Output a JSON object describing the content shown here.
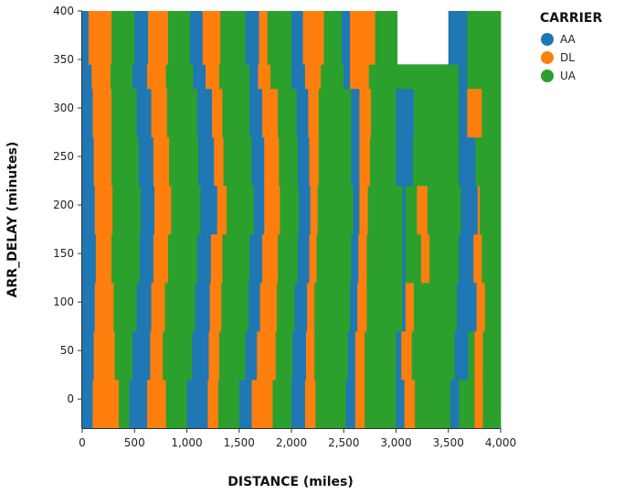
{
  "chart_data": {
    "type": "area",
    "stack": "normalize-like (streamgraph-style stacked area with vertical orientation)",
    "title": "",
    "xlabel": "DISTANCE (miles)",
    "ylabel": "ARR_DELAY (minutes)",
    "xlim": [
      0,
      4000
    ],
    "ylim": [
      -30,
      400
    ],
    "x_ticks": [
      0,
      500,
      1000,
      1500,
      2000,
      2500,
      3000,
      3500,
      4000
    ],
    "x_tick_labels": [
      "0",
      "500",
      "1,000",
      "1,500",
      "2,000",
      "2,500",
      "3,000",
      "3,500",
      "4,000"
    ],
    "y_ticks": [
      0,
      50,
      100,
      150,
      200,
      250,
      300,
      350,
      400
    ],
    "y_tick_labels": [
      "0",
      "50",
      "100",
      "150",
      "200",
      "250",
      "300",
      "350",
      "400"
    ],
    "grid": false,
    "legend": {
      "title": "CARRIER",
      "position": "top-right",
      "entries": [
        {
          "name": "AA",
          "color": "#1f77b4"
        },
        {
          "name": "DL",
          "color": "#ff7f0e"
        },
        {
          "name": "UA",
          "color": "#2ca02c"
        }
      ]
    },
    "y_bins": [
      -30,
      20,
      70,
      120,
      170,
      220,
      270,
      320,
      345,
      400
    ],
    "bands": [
      [
        [
          0,
          100,
          "AA"
        ],
        [
          100,
          350,
          "DL"
        ],
        [
          350,
          450,
          "UA"
        ],
        [
          450,
          620,
          "AA"
        ],
        [
          620,
          800,
          "DL"
        ],
        [
          800,
          1000,
          "UA"
        ],
        [
          1000,
          1200,
          "AA"
        ],
        [
          1200,
          1300,
          "DL"
        ],
        [
          1300,
          1500,
          "UA"
        ],
        [
          1500,
          1620,
          "AA"
        ],
        [
          1620,
          1820,
          "DL"
        ],
        [
          1820,
          2000,
          "UA"
        ],
        [
          2000,
          2130,
          "AA"
        ],
        [
          2130,
          2230,
          "DL"
        ],
        [
          2230,
          2520,
          "UA"
        ],
        [
          2520,
          2610,
          "AA"
        ],
        [
          2610,
          2700,
          "DL"
        ],
        [
          2700,
          3000,
          "UA"
        ],
        [
          3000,
          3080,
          "AA"
        ],
        [
          3080,
          3180,
          "DL"
        ],
        [
          3180,
          3520,
          "UA"
        ],
        [
          3520,
          3600,
          "AA"
        ],
        [
          3600,
          3750,
          "UA"
        ],
        [
          3750,
          3830,
          "DL"
        ],
        [
          3830,
          4000,
          "UA"
        ]
      ],
      [
        [
          0,
          110,
          "AA"
        ],
        [
          110,
          310,
          "DL"
        ],
        [
          310,
          480,
          "UA"
        ],
        [
          480,
          650,
          "AA"
        ],
        [
          650,
          770,
          "DL"
        ],
        [
          770,
          1050,
          "UA"
        ],
        [
          1050,
          1210,
          "AA"
        ],
        [
          1210,
          1310,
          "DL"
        ],
        [
          1310,
          1560,
          "UA"
        ],
        [
          1560,
          1670,
          "AA"
        ],
        [
          1670,
          1850,
          "DL"
        ],
        [
          1850,
          2010,
          "UA"
        ],
        [
          2010,
          2140,
          "AA"
        ],
        [
          2140,
          2220,
          "DL"
        ],
        [
          2220,
          2540,
          "UA"
        ],
        [
          2540,
          2610,
          "AA"
        ],
        [
          2610,
          2700,
          "DL"
        ],
        [
          2700,
          3000,
          "UA"
        ],
        [
          3000,
          3050,
          "AA"
        ],
        [
          3050,
          3150,
          "DL"
        ],
        [
          3150,
          3560,
          "UA"
        ],
        [
          3560,
          3690,
          "AA"
        ],
        [
          3690,
          3750,
          "UA"
        ],
        [
          3750,
          3830,
          "DL"
        ],
        [
          3830,
          4000,
          "UA"
        ]
      ],
      [
        [
          0,
          120,
          "AA"
        ],
        [
          120,
          300,
          "DL"
        ],
        [
          300,
          520,
          "UA"
        ],
        [
          520,
          660,
          "AA"
        ],
        [
          660,
          790,
          "DL"
        ],
        [
          790,
          1080,
          "UA"
        ],
        [
          1080,
          1220,
          "AA"
        ],
        [
          1220,
          1330,
          "DL"
        ],
        [
          1330,
          1590,
          "UA"
        ],
        [
          1590,
          1700,
          "AA"
        ],
        [
          1700,
          1860,
          "DL"
        ],
        [
          1860,
          2030,
          "UA"
        ],
        [
          2030,
          2150,
          "AA"
        ],
        [
          2150,
          2220,
          "DL"
        ],
        [
          2220,
          2560,
          "UA"
        ],
        [
          2560,
          2630,
          "AA"
        ],
        [
          2630,
          2720,
          "DL"
        ],
        [
          2720,
          3060,
          "UA"
        ],
        [
          3060,
          3090,
          "AA"
        ],
        [
          3090,
          3170,
          "DL"
        ],
        [
          3170,
          3580,
          "UA"
        ],
        [
          3580,
          3770,
          "AA"
        ],
        [
          3770,
          3850,
          "DL"
        ],
        [
          3850,
          4000,
          "UA"
        ]
      ],
      [
        [
          0,
          130,
          "AA"
        ],
        [
          130,
          280,
          "DL"
        ],
        [
          280,
          550,
          "UA"
        ],
        [
          550,
          680,
          "AA"
        ],
        [
          680,
          820,
          "DL"
        ],
        [
          820,
          1100,
          "UA"
        ],
        [
          1100,
          1230,
          "AA"
        ],
        [
          1230,
          1340,
          "DL"
        ],
        [
          1340,
          1600,
          "UA"
        ],
        [
          1600,
          1720,
          "AA"
        ],
        [
          1720,
          1870,
          "DL"
        ],
        [
          1870,
          2060,
          "UA"
        ],
        [
          2060,
          2170,
          "AA"
        ],
        [
          2170,
          2240,
          "DL"
        ],
        [
          2240,
          2570,
          "UA"
        ],
        [
          2570,
          2640,
          "AA"
        ],
        [
          2640,
          2720,
          "DL"
        ],
        [
          2720,
          3060,
          "UA"
        ],
        [
          3060,
          3090,
          "AA"
        ],
        [
          3090,
          3240,
          "UA"
        ],
        [
          3240,
          3320,
          "DL"
        ],
        [
          3320,
          3600,
          "UA"
        ],
        [
          3600,
          3740,
          "AA"
        ],
        [
          3740,
          3820,
          "DL"
        ],
        [
          3820,
          4000,
          "UA"
        ]
      ],
      [
        [
          0,
          120,
          "AA"
        ],
        [
          120,
          290,
          "DL"
        ],
        [
          290,
          560,
          "UA"
        ],
        [
          560,
          690,
          "AA"
        ],
        [
          690,
          850,
          "DL"
        ],
        [
          850,
          1130,
          "UA"
        ],
        [
          1130,
          1290,
          "AA"
        ],
        [
          1290,
          1380,
          "DL"
        ],
        [
          1380,
          1640,
          "UA"
        ],
        [
          1640,
          1740,
          "AA"
        ],
        [
          1740,
          1890,
          "DL"
        ],
        [
          1890,
          2070,
          "UA"
        ],
        [
          2070,
          2180,
          "AA"
        ],
        [
          2180,
          2250,
          "DL"
        ],
        [
          2250,
          2590,
          "UA"
        ],
        [
          2590,
          2650,
          "AA"
        ],
        [
          2650,
          2730,
          "DL"
        ],
        [
          2730,
          3060,
          "UA"
        ],
        [
          3060,
          3090,
          "AA"
        ],
        [
          3090,
          3200,
          "UA"
        ],
        [
          3200,
          3300,
          "DL"
        ],
        [
          3300,
          3620,
          "UA"
        ],
        [
          3620,
          3780,
          "AA"
        ],
        [
          3780,
          3800,
          "DL"
        ],
        [
          3800,
          4000,
          "UA"
        ]
      ],
      [
        [
          0,
          110,
          "AA"
        ],
        [
          110,
          280,
          "DL"
        ],
        [
          280,
          540,
          "UA"
        ],
        [
          540,
          680,
          "AA"
        ],
        [
          680,
          830,
          "DL"
        ],
        [
          830,
          1110,
          "UA"
        ],
        [
          1110,
          1260,
          "AA"
        ],
        [
          1260,
          1350,
          "DL"
        ],
        [
          1350,
          1620,
          "UA"
        ],
        [
          1620,
          1740,
          "AA"
        ],
        [
          1740,
          1880,
          "DL"
        ],
        [
          1880,
          2060,
          "UA"
        ],
        [
          2060,
          2170,
          "AA"
        ],
        [
          2170,
          2260,
          "DL"
        ],
        [
          2260,
          2570,
          "UA"
        ],
        [
          2570,
          2650,
          "AA"
        ],
        [
          2650,
          2750,
          "DL"
        ],
        [
          2750,
          3000,
          "UA"
        ],
        [
          3000,
          3160,
          "AA"
        ],
        [
          3160,
          3200,
          "UA"
        ],
        [
          3200,
          3600,
          "UA"
        ],
        [
          3600,
          3760,
          "AA"
        ],
        [
          3760,
          4000,
          "UA"
        ]
      ],
      [
        [
          0,
          100,
          "AA"
        ],
        [
          100,
          280,
          "DL"
        ],
        [
          280,
          520,
          "UA"
        ],
        [
          520,
          660,
          "AA"
        ],
        [
          660,
          810,
          "DL"
        ],
        [
          810,
          1100,
          "UA"
        ],
        [
          1100,
          1240,
          "AA"
        ],
        [
          1240,
          1340,
          "DL"
        ],
        [
          1340,
          1600,
          "UA"
        ],
        [
          1600,
          1720,
          "AA"
        ],
        [
          1720,
          1870,
          "DL"
        ],
        [
          1870,
          2050,
          "UA"
        ],
        [
          2050,
          2160,
          "AA"
        ],
        [
          2160,
          2260,
          "DL"
        ],
        [
          2260,
          2570,
          "UA"
        ],
        [
          2570,
          2650,
          "AA"
        ],
        [
          2650,
          2760,
          "DL"
        ],
        [
          2760,
          3000,
          "UA"
        ],
        [
          3000,
          3170,
          "AA"
        ],
        [
          3170,
          3600,
          "UA"
        ],
        [
          3600,
          3680,
          "AA"
        ],
        [
          3680,
          3820,
          "DL"
        ],
        [
          3820,
          4000,
          "UA"
        ]
      ],
      [
        [
          0,
          90,
          "AA"
        ],
        [
          90,
          270,
          "DL"
        ],
        [
          270,
          480,
          "UA"
        ],
        [
          480,
          620,
          "AA"
        ],
        [
          620,
          800,
          "DL"
        ],
        [
          800,
          1060,
          "UA"
        ],
        [
          1060,
          1180,
          "AA"
        ],
        [
          1180,
          1310,
          "DL"
        ],
        [
          1310,
          1600,
          "UA"
        ],
        [
          1600,
          1680,
          "AA"
        ],
        [
          1680,
          1800,
          "DL"
        ],
        [
          1800,
          2000,
          "UA"
        ],
        [
          2000,
          2130,
          "AA"
        ],
        [
          2130,
          2280,
          "DL"
        ],
        [
          2280,
          2500,
          "UA"
        ],
        [
          2500,
          2560,
          "AA"
        ],
        [
          2560,
          2740,
          "DL"
        ],
        [
          2740,
          3000,
          "UA"
        ],
        [
          3000,
          3600,
          "UA"
        ],
        [
          3600,
          3680,
          "AA"
        ],
        [
          3680,
          4000,
          "UA"
        ]
      ],
      [
        [
          0,
          60,
          "AA"
        ],
        [
          60,
          280,
          "DL"
        ],
        [
          280,
          500,
          "UA"
        ],
        [
          500,
          630,
          "AA"
        ],
        [
          630,
          820,
          "DL"
        ],
        [
          820,
          1030,
          "UA"
        ],
        [
          1030,
          1150,
          "AA"
        ],
        [
          1150,
          1320,
          "DL"
        ],
        [
          1320,
          1560,
          "UA"
        ],
        [
          1560,
          1690,
          "AA"
        ],
        [
          1690,
          1770,
          "DL"
        ],
        [
          1770,
          2000,
          "UA"
        ],
        [
          2000,
          2110,
          "AA"
        ],
        [
          2110,
          2310,
          "DL"
        ],
        [
          2310,
          2480,
          "UA"
        ],
        [
          2480,
          2560,
          "AA"
        ],
        [
          2560,
          2800,
          "DL"
        ],
        [
          2800,
          3000,
          "UA"
        ],
        [
          3000,
          3010,
          "UA"
        ],
        [
          3500,
          3680,
          "AA"
        ],
        [
          3680,
          3700,
          "UA"
        ],
        [
          3700,
          4000,
          "UA"
        ]
      ]
    ]
  },
  "legend": {
    "title": "CARRIER",
    "items": [
      {
        "label": "AA",
        "color": "#1f77b4"
      },
      {
        "label": "DL",
        "color": "#ff7f0e"
      },
      {
        "label": "UA",
        "color": "#2ca02c"
      }
    ]
  },
  "axes": {
    "x_title": "DISTANCE (miles)",
    "y_title": "ARR_DELAY (minutes)"
  }
}
